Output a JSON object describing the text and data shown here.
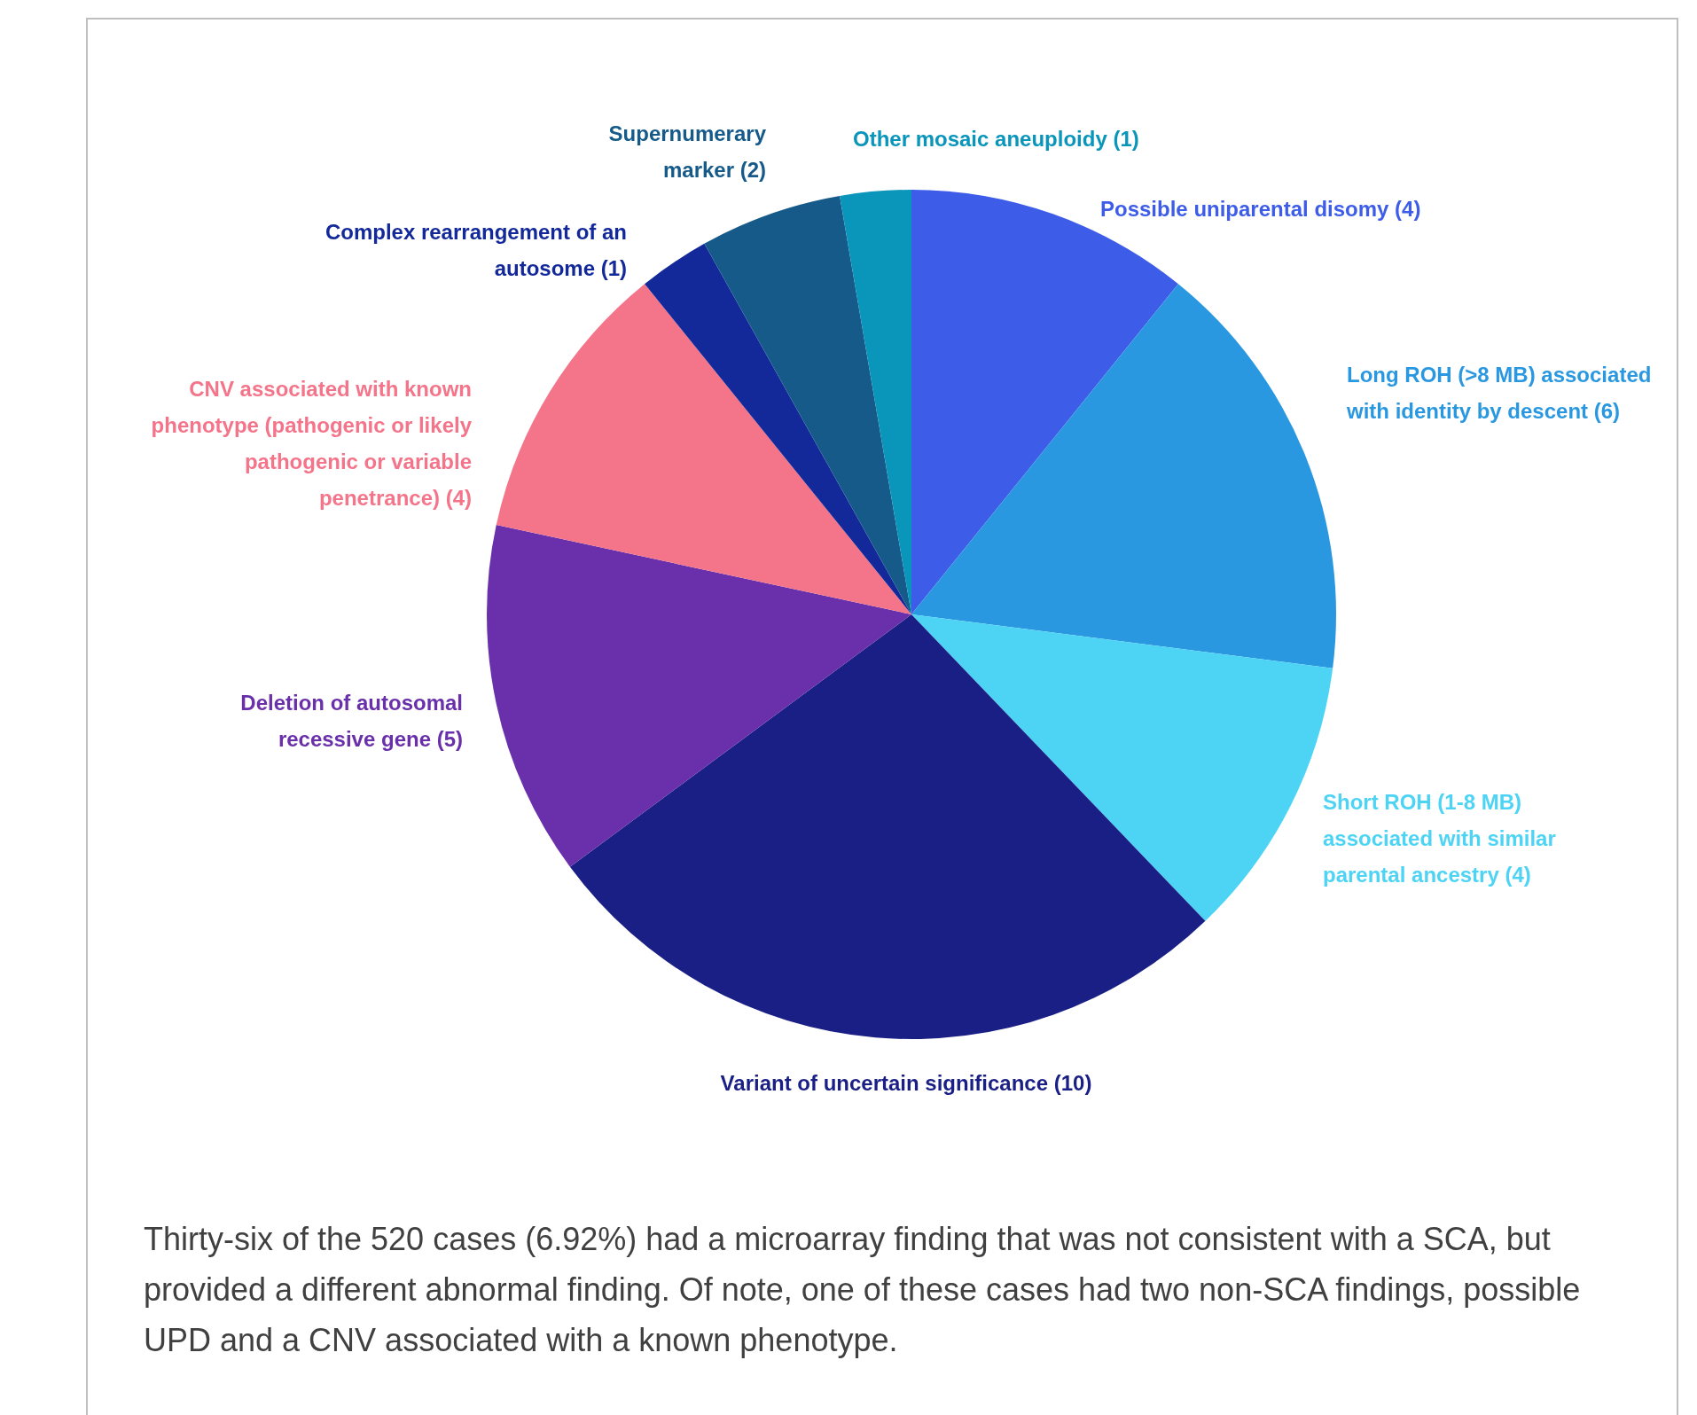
{
  "chart_data": {
    "type": "pie",
    "categories": [
      "Possible uniparental disomy (4)",
      "Long ROH (>8 MB) associated with identity by descent (6)",
      "Short ROH (1-8 MB) associated with similar parental ancestry (4)",
      "Variant of uncertain significance (10)",
      "Deletion of autosomal recessive gene (5)",
      "CNV associated with known phenotype (pathogenic or likely pathogenic or variable penetrance) (4)",
      "Complex rearrangement of an autosome (1)",
      "Supernumerary marker (2)",
      "Other mosaic aneuploidy (1)"
    ],
    "values": [
      4,
      6,
      4,
      10,
      5,
      4,
      1,
      2,
      1
    ],
    "colors": [
      "#3d5ce8",
      "#2a98e0",
      "#4dd4f5",
      "#1a1f85",
      "#6a2faa",
      "#f4748a",
      "#13299a",
      "#165a8a",
      "#0a95bb"
    ],
    "annotations": [
      "Thirty-six of the 520 cases (6.92%) had a microarray finding that was not consistent with a SCA, but provided a different abnormal finding. Of note, one of these cases had two non-SCA findings, possible UPD and a CNV associated with a known phenotype."
    ]
  }
}
